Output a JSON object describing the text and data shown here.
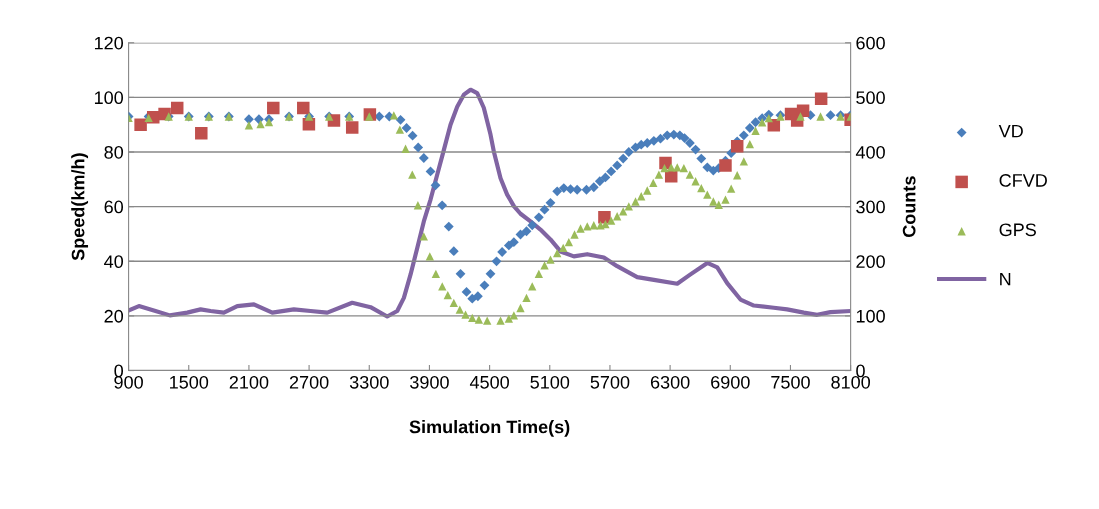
{
  "chart_data": {
    "type": "scatter",
    "xlabel": "Simulation Time(s)",
    "ylabel": "Speed(km/h)",
    "y2label": "Counts",
    "xlim": [
      900,
      8100
    ],
    "xticks": [
      900,
      1500,
      2100,
      2700,
      3300,
      3900,
      4500,
      5100,
      5700,
      6300,
      6900,
      7500,
      8100
    ],
    "ylim": [
      0,
      120
    ],
    "yticks": [
      0,
      20,
      40,
      60,
      80,
      100,
      120
    ],
    "y2lim": [
      0,
      600
    ],
    "y2ticks": [
      0,
      100,
      200,
      300,
      400,
      500,
      600
    ],
    "grid": "y",
    "legend": "right",
    "series": [
      {
        "name": "VD",
        "marker": "diamond",
        "color": "#4a7ebb",
        "x": [
          900,
          1100,
          1300,
          1500,
          1700,
          1900,
          2100,
          2200,
          2300,
          2500,
          2700,
          2900,
          3100,
          3400,
          3500,
          3612,
          3672,
          3732,
          3788,
          3844,
          3911,
          3961,
          4027,
          4093,
          4143,
          4210,
          4270,
          4327,
          4383,
          4449,
          4509,
          4569,
          4625,
          4692,
          4742,
          4808,
          4868,
          4925,
          4991,
          5048,
          5107,
          5174,
          5240,
          5307,
          5373,
          5466,
          5539,
          5599,
          5655,
          5712,
          5772,
          5832,
          5888,
          5955,
          6012,
          6072,
          6138,
          6204,
          6271,
          6337,
          6397,
          6444,
          6497,
          6554,
          6611,
          6671,
          6731,
          6785,
          6852,
          6909,
          6969,
          7035,
          7095,
          7152,
          7218,
          7284,
          7400,
          7700,
          7900,
          8000,
          8100
        ],
        "values": [
          93,
          93,
          93,
          93,
          93,
          93,
          92,
          92,
          92,
          93,
          93,
          93,
          93,
          93,
          93,
          91.8,
          88.8,
          86,
          81.7,
          77.8,
          72.9,
          67.8,
          60.5,
          52.7,
          43.7,
          35.4,
          28.8,
          26.3,
          27.2,
          31.2,
          35.4,
          40,
          43.4,
          45.8,
          47,
          49.8,
          51,
          53.2,
          56.1,
          58.9,
          61.4,
          65.6,
          66.8,
          66.4,
          66.2,
          66.2,
          67.1,
          69.3,
          70.7,
          72.9,
          75.1,
          77.6,
          80,
          81.7,
          82.7,
          83.3,
          84.1,
          84.9,
          86.1,
          86.4,
          86.1,
          85.1,
          83.3,
          80.9,
          77.6,
          74.4,
          73.2,
          74.1,
          76.8,
          79.6,
          83.9,
          86.1,
          88.8,
          90.9,
          92.4,
          93.7,
          93.5,
          93.5,
          93.5,
          93.5,
          93.5
        ]
      },
      {
        "name": "CFVD",
        "marker": "square",
        "color": "#c0504d",
        "x": [
          1020,
          1146,
          1259,
          1385,
          1625,
          2343,
          2642,
          2698,
          2948,
          3130,
          3306,
          5645,
          6254,
          6311,
          6852,
          6969,
          7334,
          7506,
          7567,
          7626,
          7806,
          8100
        ],
        "values": [
          90,
          92.7,
          93.9,
          96.1,
          86.9,
          96.1,
          96.1,
          90.2,
          91.5,
          89,
          93.7,
          56.1,
          76,
          71.1,
          75.1,
          82.1,
          89.8,
          93.9,
          91.5,
          95.1,
          99.5,
          91.8
        ]
      },
      {
        "name": "GPS",
        "marker": "triangle",
        "color": "#9bbb59",
        "x": [
          900,
          1100,
          1300,
          1500,
          1700,
          1900,
          2100,
          2216,
          2300,
          2500,
          2700,
          2900,
          3100,
          3300,
          3545,
          3605,
          3662,
          3729,
          3785,
          3844,
          3904,
          3964,
          4028,
          4083,
          4143,
          4203,
          4260,
          4327,
          4393,
          4476,
          4609,
          4692,
          4742,
          4808,
          4868,
          4925,
          4991,
          5048,
          5107,
          5174,
          5234,
          5290,
          5347,
          5407,
          5474,
          5539,
          5606,
          5655,
          5712,
          5772,
          5832,
          5888,
          5955,
          6012,
          6072,
          6132,
          6188,
          6244,
          6311,
          6371,
          6437,
          6497,
          6554,
          6611,
          6671,
          6731,
          6785,
          6852,
          6909,
          6969,
          7035,
          7095,
          7152,
          7218,
          7284,
          7400,
          7600,
          7800,
          8000,
          8100
        ],
        "values": [
          92.5,
          92.5,
          93,
          93,
          93,
          93,
          89.8,
          90.2,
          91,
          93,
          93,
          93,
          93,
          93,
          93.4,
          88.2,
          81.2,
          71.7,
          60.5,
          49.1,
          41.8,
          35.4,
          30.8,
          27.6,
          24.8,
          22.3,
          20.5,
          19.3,
          18.7,
          18.3,
          18.3,
          19,
          20.2,
          22.9,
          26.6,
          30.8,
          35.4,
          38.5,
          40.6,
          43,
          44.9,
          47,
          49.8,
          52,
          52.8,
          53.2,
          53.2,
          53.6,
          54.9,
          56.5,
          58.3,
          60.1,
          61.9,
          63.8,
          65.9,
          68.7,
          71.7,
          74.1,
          74.4,
          74.4,
          74.1,
          71.7,
          69.3,
          66.8,
          64.4,
          61.9,
          60.7,
          62.6,
          66.6,
          71.5,
          76.6,
          82.9,
          87.8,
          90.9,
          92.4,
          93,
          93,
          93,
          93,
          93
        ]
      },
      {
        "name": "N",
        "type": "line",
        "axis": "y2",
        "marker": "none",
        "color": "#8064a2",
        "x": [
          900,
          1003,
          1152,
          1312,
          1485,
          1618,
          1718,
          1850,
          1984,
          2150,
          2333,
          2548,
          2715,
          2881,
          3130,
          3313,
          3479,
          3579,
          3645,
          3712,
          3778,
          3844,
          3911,
          3978,
          4044,
          4110,
          4177,
          4243,
          4310,
          4376,
          4442,
          4509,
          4542,
          4609,
          4675,
          4742,
          4808,
          4908,
          5007,
          5107,
          5207,
          5340,
          5473,
          5639,
          5772,
          5972,
          6138,
          6371,
          6503,
          6671,
          6770,
          6869,
          7002,
          7135,
          7334,
          7467,
          7633,
          7766,
          7899,
          8100
        ],
        "values": [
          110,
          118,
          110,
          101,
          106,
          112,
          109,
          106,
          118,
          121,
          106,
          112,
          109,
          106,
          124,
          116,
          99,
          109,
          133,
          176,
          224,
          273,
          313,
          359,
          404,
          450,
          483,
          505,
          514,
          508,
          481,
          432,
          401,
          352,
          322,
          301,
          287,
          273,
          258,
          240,
          218,
          209,
          213,
          207,
          191,
          171,
          166,
          159,
          176,
          197,
          189,
          160,
          130,
          119,
          115,
          112,
          106,
          102,
          107,
          109
        ]
      }
    ]
  }
}
